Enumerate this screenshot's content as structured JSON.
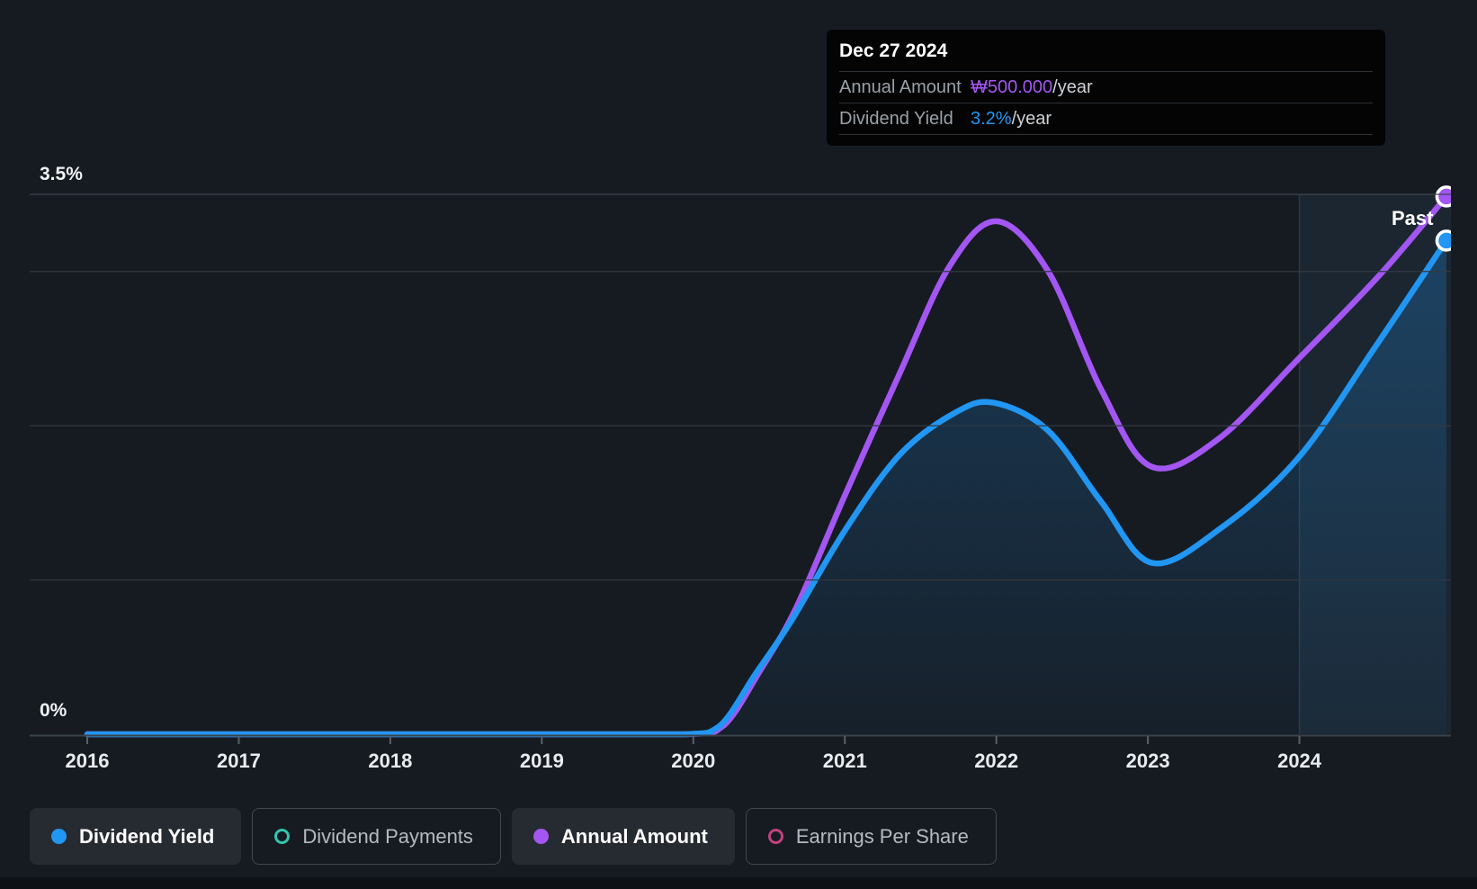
{
  "colors": {
    "background": "#161b22",
    "dividend_yield": "#2196f3",
    "dividend_payments": "#35c4ae",
    "annual_amount": "#a356f2",
    "earnings_per_share": "#c2417f",
    "gridline": "#313942",
    "gridline_top": "#3d454f",
    "axis_line": "#3a424a",
    "tick": "#596067",
    "tick_text": "#e9ecef",
    "past_band": "rgba(77,159,214,0.09)"
  },
  "tooltip": {
    "date": "Dec 27 2024",
    "rows": [
      {
        "label": "Annual Amount",
        "value": "₩500.000",
        "suffix": "/year",
        "color": "#a356f2"
      },
      {
        "label": "Dividend Yield",
        "value": "3.2%",
        "suffix": "/year",
        "color": "#2196f3"
      }
    ]
  },
  "past_label": "Past",
  "legend": [
    {
      "label": "Dividend Yield",
      "marker": "filled",
      "color": "#2196f3",
      "active": true
    },
    {
      "label": "Dividend Payments",
      "marker": "ring",
      "color": "#35c4ae",
      "active": false
    },
    {
      "label": "Annual Amount",
      "marker": "filled",
      "color": "#a356f2",
      "active": true
    },
    {
      "label": "Earnings Per Share",
      "marker": "ring",
      "color": "#c2417f",
      "active": false
    }
  ],
  "chart_data": {
    "type": "line",
    "title": "Dividend Yield and Annual Amount history",
    "x_axis": {
      "ticks": [
        "2016",
        "2017",
        "2018",
        "2019",
        "2020",
        "2021",
        "2022",
        "2023",
        "2024"
      ],
      "tick_years": [
        2016,
        2017,
        2018,
        2019,
        2020,
        2021,
        2022,
        2023,
        2024
      ],
      "range": [
        2015.62,
        2025.0
      ]
    },
    "y_axis": {
      "title": "Dividend Yield",
      "unit": "%",
      "range": [
        0,
        3.5
      ],
      "top_label": "3.5%",
      "bottom_label": "0%",
      "gridlines": [
        3.5,
        3.0,
        2.0,
        1.0
      ]
    },
    "y2_axis": {
      "title": "Annual Amount",
      "unit": "₩/year",
      "range": [
        0,
        502000
      ]
    },
    "past_band_start": 2024.0,
    "legend_position": "bottom",
    "series": [
      {
        "name": "Annual Amount",
        "color": "#a356f2",
        "axis": "y2",
        "fill": false,
        "marker_end": true,
        "end_value_label": "₩500.000/year",
        "points": [
          [
            2016,
            0
          ],
          [
            2017,
            0
          ],
          [
            2018,
            0
          ],
          [
            2019,
            0
          ],
          [
            2019.96,
            0
          ],
          [
            2020.2,
            8000
          ],
          [
            2020.44,
            59000
          ],
          [
            2020.68,
            118000
          ],
          [
            2021.0,
            222000
          ],
          [
            2021.36,
            335000
          ],
          [
            2021.69,
            435000
          ],
          [
            2022.0,
            477000
          ],
          [
            2022.34,
            431000
          ],
          [
            2022.69,
            321000
          ],
          [
            2023.02,
            249000
          ],
          [
            2023.46,
            274000
          ],
          [
            2024.0,
            350000
          ],
          [
            2024.53,
            427000
          ],
          [
            2024.97,
            500000
          ]
        ]
      },
      {
        "name": "Dividend Yield",
        "color": "#2196f3",
        "axis": "y",
        "fill": true,
        "marker_end": true,
        "end_value_label": "3.2%/year",
        "points": [
          [
            2016,
            0
          ],
          [
            2017,
            0
          ],
          [
            2018,
            0
          ],
          [
            2019,
            0
          ],
          [
            2019.93,
            0
          ],
          [
            2020.17,
            0.05
          ],
          [
            2020.41,
            0.39
          ],
          [
            2020.65,
            0.74
          ],
          [
            2021.0,
            1.32
          ],
          [
            2021.36,
            1.81
          ],
          [
            2021.72,
            2.08
          ],
          [
            2021.98,
            2.15
          ],
          [
            2022.34,
            1.97
          ],
          [
            2022.69,
            1.51
          ],
          [
            2023.03,
            1.11
          ],
          [
            2023.5,
            1.35
          ],
          [
            2024.0,
            1.8
          ],
          [
            2024.5,
            2.51
          ],
          [
            2024.97,
            3.2
          ]
        ]
      },
      {
        "name": "Dividend Payments",
        "color": "#35c4ae",
        "axis": "y",
        "visible": false,
        "points": []
      },
      {
        "name": "Earnings Per Share",
        "color": "#c2417f",
        "axis": "y",
        "visible": false,
        "points": []
      }
    ]
  }
}
